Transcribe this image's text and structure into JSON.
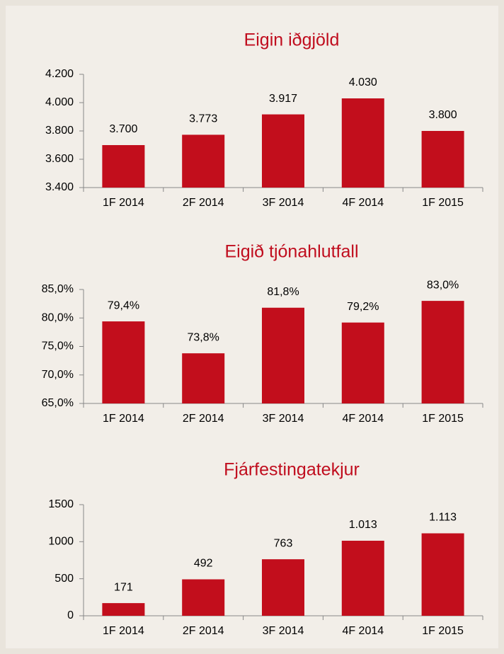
{
  "chart_data": [
    {
      "type": "bar",
      "title": "Eigin iðgjöld",
      "color": "#c20e1c",
      "categories": [
        "1F 2014",
        "2F 2014",
        "3F 2014",
        "4F 2014",
        "1F 2015"
      ],
      "values": [
        3700,
        3773,
        3917,
        4030,
        3800
      ],
      "value_labels": [
        "3.700",
        "3.773",
        "3.917",
        "4.030",
        "3.800"
      ],
      "ylim": [
        3400,
        4200
      ],
      "yticks": [
        {
          "value": 3400,
          "label": "3.400"
        },
        {
          "value": 3600,
          "label": "3.600"
        },
        {
          "value": 3800,
          "label": "3.800"
        },
        {
          "value": 4000,
          "label": "4.000"
        },
        {
          "value": 4200,
          "label": "4.200"
        }
      ]
    },
    {
      "type": "bar",
      "title": "Eigið tjónahlutfall",
      "color": "#c20e1c",
      "categories": [
        "1F 2014",
        "2F 2014",
        "3F 2014",
        "4F 2014",
        "1F 2015"
      ],
      "values": [
        79.4,
        73.8,
        81.8,
        79.2,
        83.0
      ],
      "value_labels": [
        "79,4%",
        "73,8%",
        "81,8%",
        "79,2%",
        "83,0%"
      ],
      "ylim": [
        65,
        85
      ],
      "yticks": [
        {
          "value": 65,
          "label": "65,0%"
        },
        {
          "value": 70,
          "label": "70,0%"
        },
        {
          "value": 75,
          "label": "75,0%"
        },
        {
          "value": 80,
          "label": "80,0%"
        },
        {
          "value": 85,
          "label": "85,0%"
        }
      ]
    },
    {
      "type": "bar",
      "title": "Fjárfestingatekjur",
      "color": "#c20e1c",
      "categories": [
        "1F 2014",
        "2F 2014",
        "3F 2014",
        "4F 2014",
        "1F 2015"
      ],
      "values": [
        171,
        492,
        763,
        1013,
        1113
      ],
      "value_labels": [
        "171",
        "492",
        "763",
        "1.013",
        "1.113"
      ],
      "ylim": [
        0,
        1500
      ],
      "yticks": [
        0,
        500,
        1000,
        1500
      ]
    }
  ]
}
